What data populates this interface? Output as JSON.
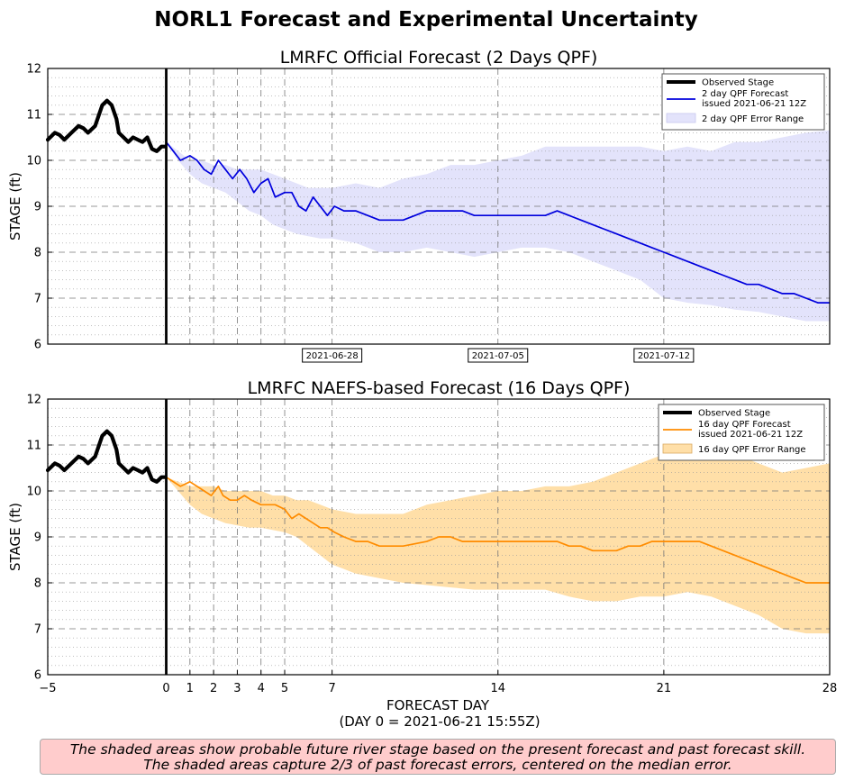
{
  "figure": {
    "title": "NORL1 Forecast and Experimental Uncertainty",
    "xlabel": "FORECAST DAY",
    "xlabel_sub": "(DAY 0 = 2021-06-21 15:55Z)",
    "note_line1": "The shaded areas show probable future river stage based on the present forecast and past forecast skill.",
    "note_line2": "The shaded areas capture 2/3 of past forecast errors, centered on the median error."
  },
  "colors": {
    "observed": "#000000",
    "official_line": "#0000dd",
    "official_band": "#e3e3fb",
    "naefs_line": "#ff8c00",
    "naefs_band": "#ffdfa8",
    "note_background": "#ffcccc"
  },
  "chart_data": [
    {
      "type": "line",
      "title": "LMRFC Official Forecast (2 Days QPF)",
      "xlabel": "",
      "ylabel": "STAGE (ft)",
      "xlim": [
        -5,
        28
      ],
      "ylim": [
        6,
        12
      ],
      "yticks": [
        "6",
        "7",
        "8",
        "9",
        "10",
        "11",
        "12"
      ],
      "date_ticks": [
        {
          "x": 7,
          "label": "2021-06-28"
        },
        {
          "x": 14,
          "label": "2021-07-05"
        },
        {
          "x": 21,
          "label": "2021-07-12"
        }
      ],
      "vertical_gridlines_days": [
        1,
        2,
        3,
        4,
        5,
        7,
        14,
        21
      ],
      "legend_position": "top-right",
      "legend": [
        {
          "kind": "thick-line",
          "label": "Observed Stage"
        },
        {
          "kind": "line",
          "label": "2 day QPF Forecast",
          "label2": "issued 2021-06-21 12Z"
        },
        {
          "kind": "patch",
          "label": "2 day QPF Error Range"
        }
      ],
      "observed": {
        "name": "Observed Stage",
        "x": [
          -5,
          -4.7,
          -4.5,
          -4.3,
          -4.0,
          -3.7,
          -3.5,
          -3.3,
          -3.0,
          -2.7,
          -2.5,
          -2.3,
          -2.1,
          -2.0,
          -1.8,
          -1.6,
          -1.4,
          -1.2,
          -1.0,
          -0.8,
          -0.6,
          -0.4,
          -0.2,
          -0.05
        ],
        "y": [
          10.45,
          10.6,
          10.55,
          10.45,
          10.6,
          10.75,
          10.7,
          10.6,
          10.75,
          11.2,
          11.3,
          11.2,
          10.9,
          10.6,
          10.5,
          10.4,
          10.5,
          10.45,
          10.4,
          10.5,
          10.25,
          10.2,
          10.3,
          10.3
        ]
      },
      "series": [
        {
          "name": "2 day QPF Forecast",
          "x": [
            0,
            0.3,
            0.6,
            1.0,
            1.3,
            1.6,
            1.9,
            2.2,
            2.5,
            2.8,
            3.1,
            3.4,
            3.7,
            4.0,
            4.3,
            4.6,
            5.0,
            5.3,
            5.6,
            5.9,
            6.2,
            6.5,
            6.8,
            7.1,
            7.5,
            8.0,
            8.5,
            9.0,
            9.5,
            10.0,
            10.5,
            11.0,
            11.5,
            12.0,
            12.5,
            13.0,
            13.5,
            14.0,
            15.0,
            16.0,
            16.5,
            17.0,
            17.5,
            18.0,
            18.5,
            19.0,
            19.5,
            20.0,
            20.5,
            21.0,
            21.5,
            22.0,
            22.5,
            23.0,
            23.5,
            24.0,
            24.5,
            25.0,
            25.5,
            26.0,
            26.5,
            27.0,
            27.5,
            28.0
          ],
          "y": [
            10.4,
            10.2,
            10.0,
            10.1,
            10.0,
            9.8,
            9.7,
            10.0,
            9.8,
            9.6,
            9.8,
            9.6,
            9.3,
            9.5,
            9.6,
            9.2,
            9.3,
            9.3,
            9.0,
            8.9,
            9.2,
            9.0,
            8.8,
            9.0,
            8.9,
            8.9,
            8.8,
            8.7,
            8.7,
            8.7,
            8.8,
            8.9,
            8.9,
            8.9,
            8.9,
            8.8,
            8.8,
            8.8,
            8.8,
            8.8,
            8.9,
            8.8,
            8.7,
            8.6,
            8.5,
            8.4,
            8.3,
            8.2,
            8.1,
            8.0,
            7.9,
            7.8,
            7.7,
            7.6,
            7.5,
            7.4,
            7.3,
            7.3,
            7.2,
            7.1,
            7.1,
            7.0,
            6.9,
            6.9
          ]
        }
      ],
      "band": {
        "name": "2 day QPF Error Range",
        "x": [
          0,
          0.5,
          1,
          1.5,
          2,
          2.5,
          3,
          3.5,
          4,
          4.5,
          5,
          5.5,
          6,
          6.5,
          7,
          8,
          9,
          10,
          11,
          12,
          13,
          14,
          15,
          16,
          17,
          18,
          19,
          20,
          21,
          22,
          23,
          24,
          25,
          26,
          27,
          28
        ],
        "upper": [
          10.4,
          10.2,
          10.0,
          10.0,
          9.9,
          9.9,
          9.8,
          9.8,
          9.8,
          9.7,
          9.6,
          9.5,
          9.4,
          9.4,
          9.4,
          9.5,
          9.4,
          9.6,
          9.7,
          9.9,
          9.9,
          10.0,
          10.1,
          10.3,
          10.3,
          10.3,
          10.3,
          10.3,
          10.2,
          10.3,
          10.2,
          10.4,
          10.4,
          10.5,
          10.6,
          10.65
        ],
        "lower": [
          10.4,
          10.0,
          9.7,
          9.5,
          9.4,
          9.3,
          9.1,
          8.9,
          8.8,
          8.6,
          8.5,
          8.4,
          8.35,
          8.3,
          8.3,
          8.2,
          8.0,
          8.0,
          8.1,
          8.0,
          7.9,
          8.0,
          8.1,
          8.1,
          8.0,
          7.8,
          7.6,
          7.4,
          7.0,
          6.9,
          6.85,
          6.75,
          6.7,
          6.6,
          6.5,
          6.5
        ]
      }
    },
    {
      "type": "line",
      "title": "LMRFC NAEFS-based Forecast (16 Days QPF)",
      "xlabel": "FORECAST DAY",
      "ylabel": "STAGE (ft)",
      "xlim": [
        -5,
        28
      ],
      "ylim": [
        6,
        12
      ],
      "yticks": [
        "6",
        "7",
        "8",
        "9",
        "10",
        "11",
        "12"
      ],
      "xticks": [
        {
          "x": -5,
          "label": "−5"
        },
        {
          "x": 0,
          "label": "0"
        },
        {
          "x": 1,
          "label": "1"
        },
        {
          "x": 2,
          "label": "2"
        },
        {
          "x": 3,
          "label": "3"
        },
        {
          "x": 4,
          "label": "4"
        },
        {
          "x": 5,
          "label": "5"
        },
        {
          "x": 7,
          "label": "7"
        },
        {
          "x": 14,
          "label": "14"
        },
        {
          "x": 21,
          "label": "21"
        },
        {
          "x": 28,
          "label": "28"
        }
      ],
      "vertical_gridlines_days": [
        1,
        2,
        3,
        4,
        5,
        7,
        14,
        21
      ],
      "legend_position": "top-right",
      "legend": [
        {
          "kind": "thick-line",
          "label": "Observed Stage"
        },
        {
          "kind": "line",
          "label": "16 day QPF Forecast",
          "label2": "issued 2021-06-21 12Z"
        },
        {
          "kind": "patch",
          "label": "16 day QPF Error Range"
        }
      ],
      "observed": {
        "name": "Observed Stage",
        "x": [
          -5,
          -4.7,
          -4.5,
          -4.3,
          -4.0,
          -3.7,
          -3.5,
          -3.3,
          -3.0,
          -2.7,
          -2.5,
          -2.3,
          -2.1,
          -2.0,
          -1.8,
          -1.6,
          -1.4,
          -1.2,
          -1.0,
          -0.8,
          -0.6,
          -0.4,
          -0.2,
          -0.05
        ],
        "y": [
          10.45,
          10.6,
          10.55,
          10.45,
          10.6,
          10.75,
          10.7,
          10.6,
          10.75,
          11.2,
          11.3,
          11.2,
          10.9,
          10.6,
          10.5,
          10.4,
          10.5,
          10.45,
          10.4,
          10.5,
          10.25,
          10.2,
          10.3,
          10.3
        ]
      },
      "series": [
        {
          "name": "16 day QPF Forecast",
          "x": [
            0,
            0.3,
            0.6,
            1.0,
            1.3,
            1.6,
            1.9,
            2.2,
            2.4,
            2.7,
            3.0,
            3.3,
            3.6,
            4.0,
            4.3,
            4.6,
            5.0,
            5.3,
            5.6,
            5.9,
            6.2,
            6.5,
            6.8,
            7.1,
            7.5,
            8.0,
            8.5,
            9.0,
            10.0,
            11.0,
            11.5,
            12.0,
            12.5,
            13.0,
            14.0,
            15.0,
            16.0,
            16.5,
            17.0,
            17.5,
            18.0,
            18.5,
            19.0,
            19.5,
            20.0,
            20.5,
            21.0,
            21.5,
            22.0,
            22.5,
            23.0,
            23.5,
            24.0,
            24.5,
            25.0,
            25.5,
            26.0,
            26.5,
            27.0,
            27.5,
            28.0
          ],
          "y": [
            10.3,
            10.2,
            10.1,
            10.2,
            10.1,
            10.0,
            9.9,
            10.1,
            9.9,
            9.8,
            9.8,
            9.9,
            9.8,
            9.7,
            9.7,
            9.7,
            9.6,
            9.4,
            9.5,
            9.4,
            9.3,
            9.2,
            9.2,
            9.1,
            9.0,
            8.9,
            8.9,
            8.8,
            8.8,
            8.9,
            9.0,
            9.0,
            8.9,
            8.9,
            8.9,
            8.9,
            8.9,
            8.9,
            8.8,
            8.8,
            8.7,
            8.7,
            8.7,
            8.8,
            8.8,
            8.9,
            8.9,
            8.9,
            8.9,
            8.9,
            8.8,
            8.7,
            8.6,
            8.5,
            8.4,
            8.3,
            8.2,
            8.1,
            8.0,
            8.0,
            8.0
          ]
        }
      ],
      "band": {
        "name": "16 day QPF Error Range",
        "x": [
          0,
          0.5,
          1,
          1.5,
          2,
          2.5,
          3,
          3.5,
          4,
          4.5,
          5,
          5.5,
          6,
          6.5,
          7,
          8,
          9,
          10,
          11,
          12,
          13,
          14,
          15,
          16,
          17,
          18,
          19,
          20,
          21,
          22,
          23,
          24,
          25,
          26,
          27,
          28
        ],
        "upper": [
          10.3,
          10.2,
          10.1,
          10.1,
          10.1,
          10.0,
          10.0,
          10.0,
          10.0,
          9.9,
          9.9,
          9.8,
          9.8,
          9.7,
          9.6,
          9.5,
          9.5,
          9.5,
          9.7,
          9.8,
          9.9,
          10.0,
          10.0,
          10.1,
          10.1,
          10.2,
          10.4,
          10.6,
          10.8,
          10.8,
          10.9,
          10.8,
          10.6,
          10.4,
          10.5,
          10.6
        ],
        "lower": [
          10.3,
          10.0,
          9.7,
          9.5,
          9.4,
          9.3,
          9.25,
          9.2,
          9.2,
          9.15,
          9.1,
          9.0,
          8.8,
          8.6,
          8.4,
          8.2,
          8.1,
          8.0,
          7.95,
          7.9,
          7.85,
          7.85,
          7.85,
          7.85,
          7.7,
          7.6,
          7.6,
          7.7,
          7.7,
          7.8,
          7.7,
          7.5,
          7.3,
          7.0,
          6.9,
          6.9
        ]
      }
    }
  ]
}
